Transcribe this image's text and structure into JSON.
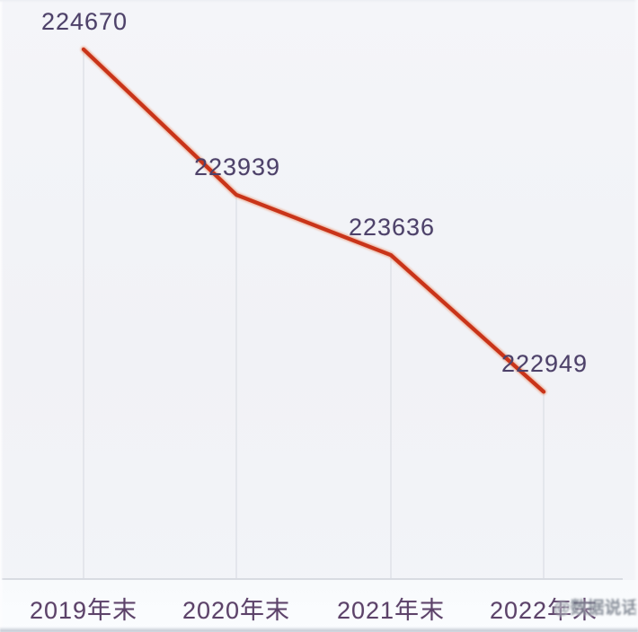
{
  "chart_data": {
    "type": "line",
    "title": "",
    "categories": [
      "2019年末",
      "2020年末",
      "2021年末",
      "2022年末"
    ],
    "values": [
      224670,
      223939,
      223636,
      222949
    ],
    "value_labels": [
      "224670",
      "223939",
      "223636",
      "222949"
    ],
    "xlabel": "",
    "ylabel": "",
    "ylim": [
      222600,
      224920
    ],
    "legend": "none",
    "grid": "vertical drop-lines from each point to baseline",
    "line_color": "#c93419",
    "line_glow_color": "#e86e3a",
    "data_label_color": "#4d4169",
    "axis_label_color": "#5c4269",
    "guide_line_color": "#e3e5ea",
    "baseline_color": "#d8dbe2",
    "background_color": "#f2f3f7"
  },
  "watermark": {
    "text": "@数据说话",
    "color": "#6f7784"
  }
}
